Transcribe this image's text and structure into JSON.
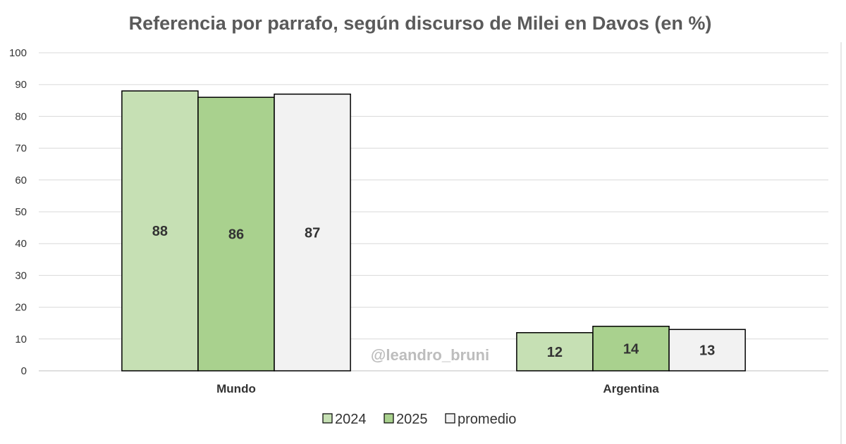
{
  "chart_data": {
    "type": "bar",
    "title": "Referencia por parrafo, según discurso de Milei en Davos (en %)",
    "categories": [
      "Mundo",
      "Argentina"
    ],
    "series": [
      {
        "name": "2024",
        "values": [
          88,
          12
        ],
        "color": "#c6e0b4",
        "show_label": true
      },
      {
        "name": "2025",
        "values": [
          86,
          14
        ],
        "color": "#a9d18e",
        "show_label": true
      },
      {
        "name": "promedio",
        "values": [
          87,
          13
        ],
        "color": "#f2f2f2",
        "show_label": true
      }
    ],
    "ylim": [
      0,
      100
    ],
    "yticks": [
      0,
      10,
      20,
      30,
      40,
      50,
      60,
      70,
      80,
      90,
      100
    ],
    "grid": true,
    "legend_position": "bottom",
    "xlabel": "",
    "ylabel": "",
    "watermark": "@leandro_bruni"
  }
}
